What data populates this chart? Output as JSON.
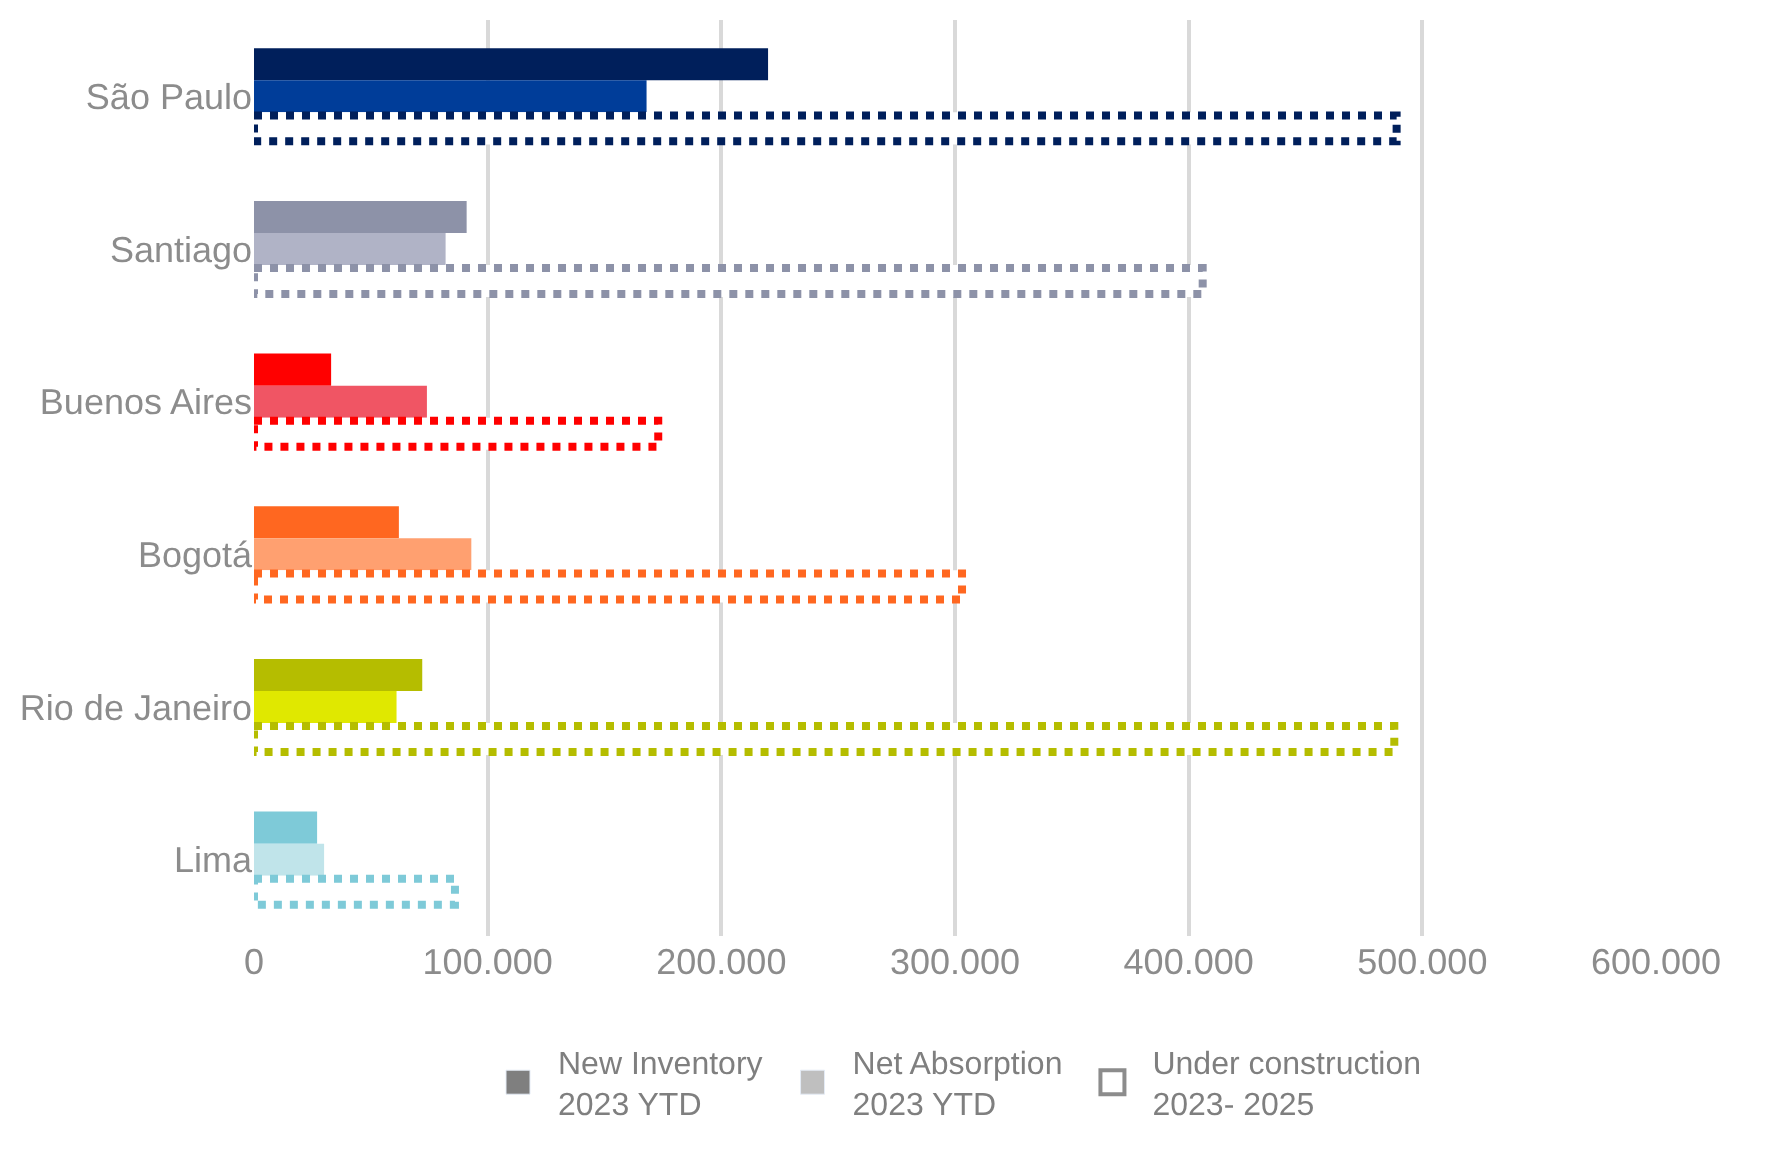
{
  "chart_data": {
    "type": "bar",
    "orientation": "horizontal",
    "categories": [
      "São Paulo",
      "Santiago",
      "Buenos Aires",
      "Bogotá",
      "Rio de Janeiro",
      "Lima"
    ],
    "series": [
      {
        "name": "New Inventory\n2023 YTD",
        "color": "#7f7f7f",
        "colors": [
          "#001f5b",
          "#8d92a8",
          "#ff0000",
          "#ff6720",
          "#b5bd00",
          "#7ecad8"
        ],
        "values": [
          220000,
          91000,
          33000,
          62000,
          72000,
          27000
        ]
      },
      {
        "name": "Net Absorption\n2023 YTD",
        "color": "#bfbfbf",
        "colors": [
          "#003d99",
          "#b0b3c6",
          "#f05564",
          "#ffa070",
          "#e0e800",
          "#c0e4ea"
        ],
        "values": [
          168000,
          82000,
          74000,
          93000,
          61000,
          30000
        ]
      },
      {
        "name": "Under construction\n2023- 2025",
        "color": "#8c8c8c",
        "line_style": "dotted",
        "colors": [
          "#001f5b",
          "#8d92a8",
          "#ff0000",
          "#ff6720",
          "#b5bd00",
          "#7ecad8"
        ],
        "values": [
          489000,
          406000,
          173000,
          303000,
          488000,
          86000
        ]
      }
    ],
    "xlim": [
      0,
      600000
    ],
    "xticks": [
      {
        "value": 0,
        "label": "0"
      },
      {
        "value": 100000,
        "label": "100.000"
      },
      {
        "value": 200000,
        "label": "200.000"
      },
      {
        "value": 300000,
        "label": "300.000"
      },
      {
        "value": 400000,
        "label": "400.000"
      },
      {
        "value": 500000,
        "label": "500.000"
      },
      {
        "value": 600000,
        "label": "600.000"
      }
    ],
    "grid": "x",
    "legend": "bottom"
  }
}
